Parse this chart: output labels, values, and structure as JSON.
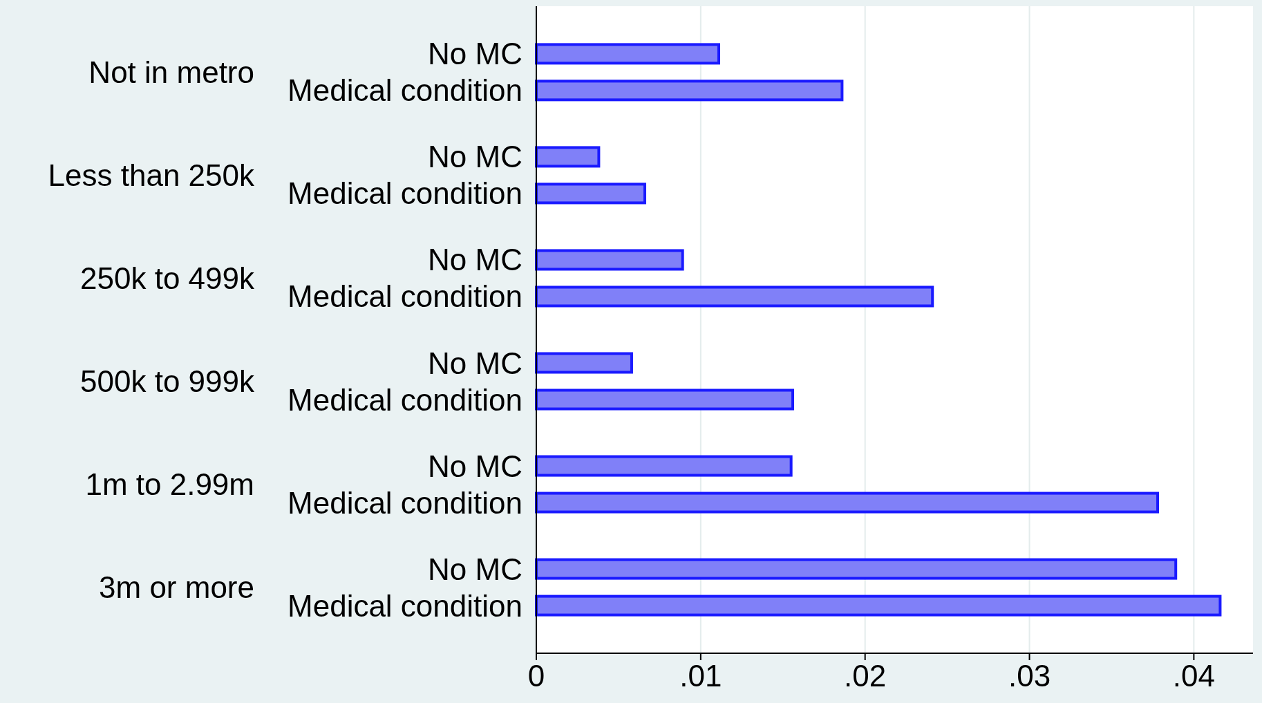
{
  "chart_data": {
    "type": "bar",
    "orientation": "horizontal",
    "categories": [
      "No MC",
      "Medical condition",
      "No MC",
      "Medical condition",
      "No MC",
      "Medical condition",
      "No MC",
      "Medical condition",
      "No MC",
      "Medical condition",
      "No MC",
      "Medical condition"
    ],
    "values": [
      0.0111,
      0.0186,
      0.0038,
      0.0066,
      0.0089,
      0.0241,
      0.0058,
      0.0156,
      0.0155,
      0.0378,
      0.0389,
      0.0416
    ],
    "color": "#8080f8",
    "annotations": [
      "Not in metro",
      "Less than 250k",
      "250k to 499k",
      "500k to 999k",
      "1m to 2.99m",
      "3m or more"
    ],
    "xlim": [
      0,
      0.0436
    ],
    "xticks": [
      0,
      {
        "value": 0.01,
        "label": ".01"
      },
      {
        "value": 0.02,
        "label": ".02"
      },
      {
        "value": 0.03,
        "label": ".03"
      },
      {
        "value": 0.04,
        "label": ".04"
      }
    ],
    "grid": "x"
  }
}
